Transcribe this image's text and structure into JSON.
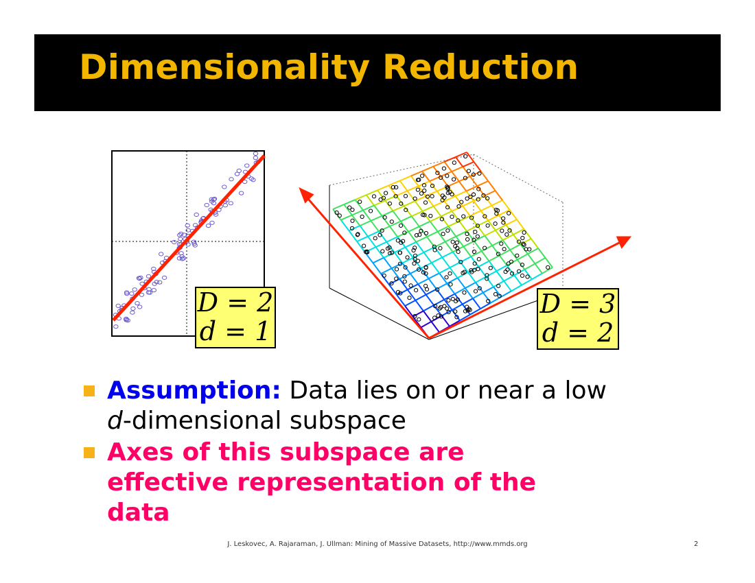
{
  "slide": {
    "title": "Dimensionality Reduction",
    "figure_left": {
      "label_line1": "D = 2",
      "label_line2": "d = 1"
    },
    "figure_right": {
      "label_line1": "D = 3",
      "label_line2": "d = 2"
    },
    "bullets": [
      {
        "keyword": "Assumption:",
        "text_a": " Data lies on or near a low ",
        "italic": "d",
        "text_b": "-dimensional subspace"
      },
      {
        "text": "Axes of this subspace are effective representation of the data"
      }
    ],
    "footer": "J. Leskovec, A. Rajaraman, J. Ullman: Mining of Massive Datasets, http://www.mmds.org",
    "page_number": "2"
  },
  "colors": {
    "title": "#f2b600",
    "title_bar": "#000000",
    "assumption": "#0000ee",
    "bullet2": "#ff0066",
    "bullet_marker": "#f7b21a",
    "label_box": "#ffff73",
    "axis_line": "#ff2200"
  }
}
